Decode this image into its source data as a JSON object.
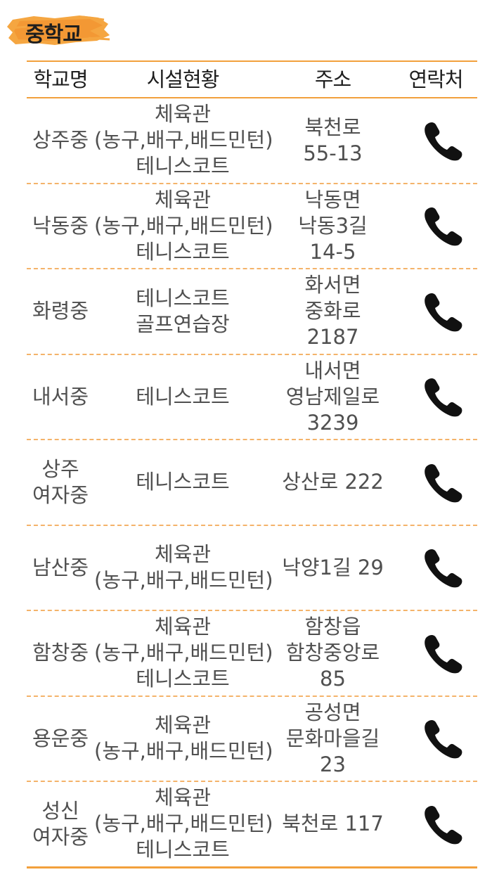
{
  "section_title": "중학교",
  "columns": {
    "name": "학교명",
    "facilities": "시설현황",
    "address": "주소",
    "contact": "연락처"
  },
  "accent_color": "#f2a03c",
  "contact_icon": "phone-icon",
  "rows": [
    {
      "name": [
        "상주중"
      ],
      "facilities": [
        "체육관",
        "(농구,배구,배드민턴)",
        "테니스코트"
      ],
      "address": [
        "북천로",
        "55-13"
      ]
    },
    {
      "name": [
        "낙동중"
      ],
      "facilities": [
        "체육관",
        "(농구,배구,배드민턴)",
        "테니스코트"
      ],
      "address": [
        "낙동면",
        "낙동3길",
        "14-5"
      ]
    },
    {
      "name": [
        "화령중"
      ],
      "facilities": [
        "테니스코트",
        "골프연습장"
      ],
      "address": [
        "화서면",
        "중화로",
        "2187"
      ]
    },
    {
      "name": [
        "내서중"
      ],
      "facilities": [
        "테니스코트"
      ],
      "address": [
        "내서면",
        "영남제일로",
        "3239"
      ]
    },
    {
      "name": [
        "상주",
        "여자중"
      ],
      "facilities": [
        "테니스코트"
      ],
      "address": [
        "상산로  222"
      ]
    },
    {
      "name": [
        "남산중"
      ],
      "facilities": [
        "체육관",
        "(농구,배구,배드민턴)"
      ],
      "address": [
        "낙양1길  29"
      ]
    },
    {
      "name": [
        "함창중"
      ],
      "facilities": [
        "체육관",
        "(농구,배구,배드민턴)",
        "테니스코트"
      ],
      "address": [
        "함창읍",
        "함창중앙로",
        "85"
      ]
    },
    {
      "name": [
        "용운중"
      ],
      "facilities": [
        "체육관",
        "(농구,배구,배드민턴)"
      ],
      "address": [
        "공성면",
        "문화마을길",
        "23"
      ]
    },
    {
      "name": [
        "성신",
        "여자중"
      ],
      "facilities": [
        "체육관",
        "(농구,배구,배드민턴)",
        "테니스코트"
      ],
      "address": [
        "북천로  117"
      ]
    }
  ]
}
